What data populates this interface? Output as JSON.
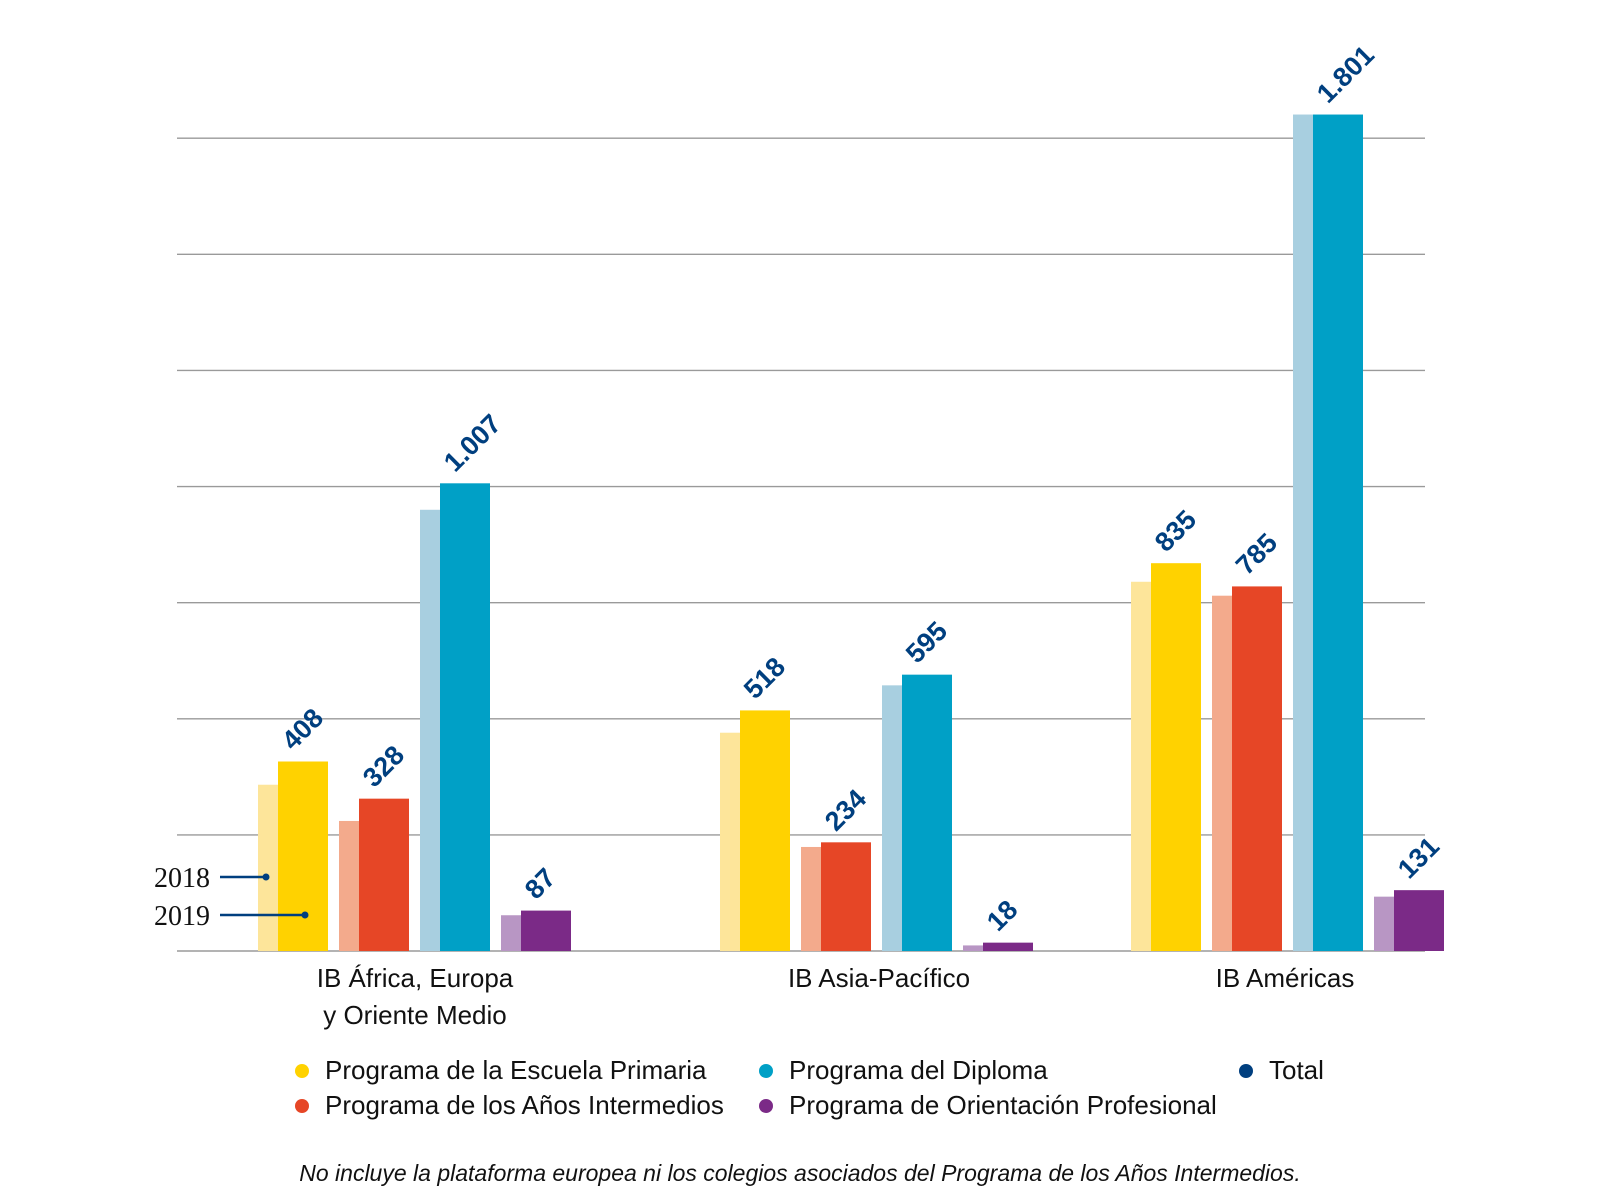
{
  "chart_data": {
    "type": "bar",
    "categories": [
      [
        "IB África, Europa",
        "y Oriente Medio"
      ],
      [
        "IB Asia-Pacífico"
      ],
      [
        "IB Américas"
      ]
    ],
    "years": [
      "2018",
      "2019"
    ],
    "ylim": [
      0,
      1800
    ],
    "grid": true,
    "series": [
      {
        "name": "Programa de la Escuela Primaria",
        "color": "#ffd200",
        "color_2018": "#fde59a",
        "values_2018": [
          358,
          470,
          795
        ],
        "values_2019": [
          408,
          518,
          835
        ],
        "labels": [
          "408",
          "518",
          "835"
        ]
      },
      {
        "name": "Programa de los Años Intermedios",
        "color": "#e64626",
        "color_2018": "#f3aa8c",
        "values_2018": [
          280,
          224,
          765
        ],
        "values_2019": [
          328,
          234,
          785
        ],
        "labels": [
          "328",
          "234",
          "785"
        ]
      },
      {
        "name": "Programa del Diploma",
        "color": "#00a0c6",
        "color_2018": "#a8cfe0",
        "values_2018": [
          950,
          572,
          1801
        ],
        "values_2019": [
          1007,
          595,
          1801
        ],
        "labels": [
          "1.007",
          "595",
          "1.801"
        ]
      },
      {
        "name": "Programa de Orientación Profesional",
        "color": "#7b2a87",
        "color_2018": "#b896c4",
        "values_2018": [
          77,
          12,
          117
        ],
        "values_2019": [
          87,
          18,
          131
        ],
        "labels": [
          "87",
          "18",
          "131"
        ]
      }
    ],
    "legend": [
      {
        "label": "Programa de la Escuela Primaria",
        "color": "#ffd200"
      },
      {
        "label": "Programa del Diploma",
        "color": "#00a0c6"
      },
      {
        "label": "Total",
        "color": "#003f7f"
      },
      {
        "label": "Programa de los Años Intermedios",
        "color": "#e64626"
      },
      {
        "label": "Programa de Orientación Profesional",
        "color": "#7b2a87"
      }
    ],
    "label_color": "#003f7f"
  },
  "footnote": "No incluye la plataforma europea ni los colegios asociados del Programa de los Años Intermedios."
}
